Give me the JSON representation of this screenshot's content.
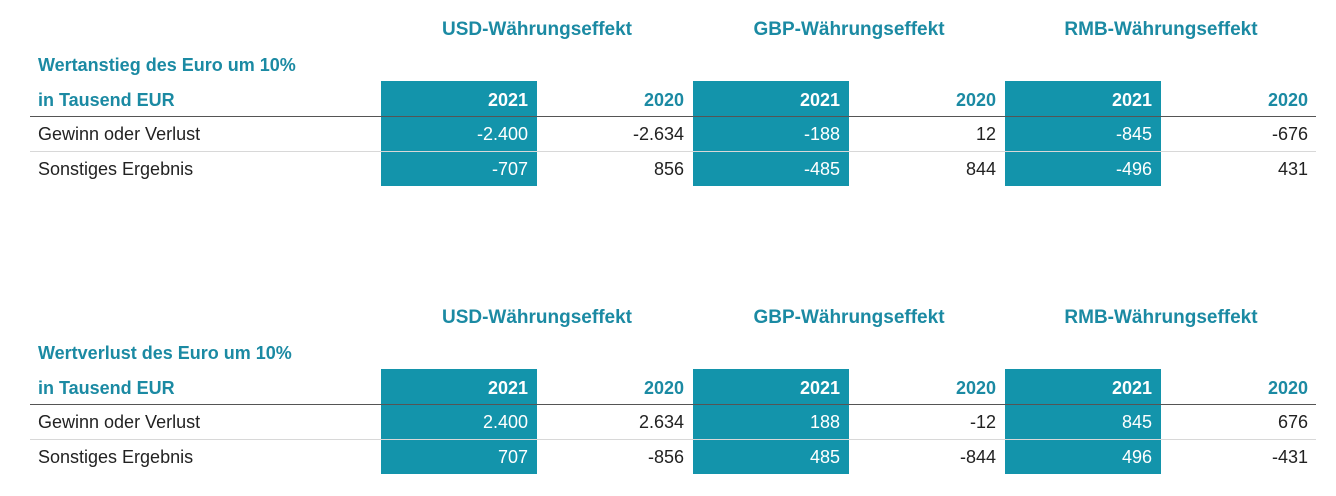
{
  "currencies": [
    "USD-Währungseffekt",
    "GBP-Währungseffekt",
    "RMB-Währungseffekt"
  ],
  "years": [
    "2021",
    "2020"
  ],
  "unit_label": "in Tausend EUR",
  "colors": {
    "accent_text": "#1b8aa3",
    "highlight": "#1394ab",
    "body_text": "#222222"
  },
  "tables": [
    {
      "title": "Wertanstieg des Euro um 10%",
      "rows": [
        {
          "label": "Gewinn oder Verlust",
          "values": [
            "-2.400",
            "-2.634",
            "-188",
            "12",
            "-845",
            "-676"
          ]
        },
        {
          "label": "Sonstiges Ergebnis",
          "values": [
            "-707",
            "856",
            "-485",
            "844",
            "-496",
            "431"
          ]
        }
      ]
    },
    {
      "title": "Wertverlust des Euro um 10%",
      "rows": [
        {
          "label": "Gewinn oder Verlust",
          "values": [
            "2.400",
            "2.634",
            "188",
            "-12",
            "845",
            "676"
          ]
        },
        {
          "label": "Sonstiges Ergebnis",
          "values": [
            "707",
            "-856",
            "485",
            "-844",
            "496",
            "-431"
          ]
        }
      ]
    }
  ]
}
